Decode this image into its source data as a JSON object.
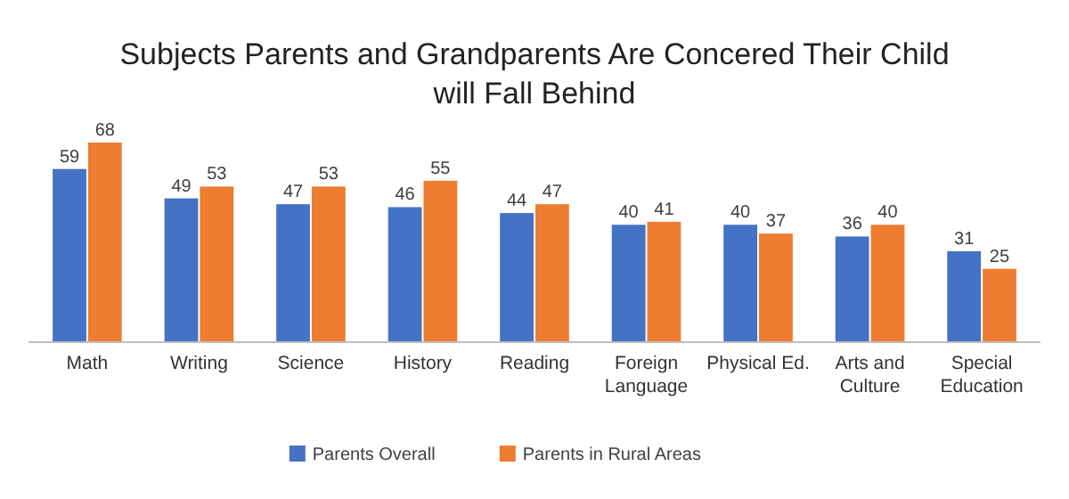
{
  "chart_data": {
    "type": "bar",
    "title": "Subjects Parents  and Grandparents Are Concered Their Child\nwill Fall Behind",
    "categories": [
      "Math",
      "Writing",
      "Science",
      "History",
      "Reading",
      "Foreign Language",
      "Physical Ed.",
      "Arts and Culture",
      "Special Education"
    ],
    "series": [
      {
        "name": "Parents Overall",
        "color": "#4472c4",
        "values": [
          59,
          49,
          47,
          46,
          44,
          40,
          40,
          36,
          31
        ]
      },
      {
        "name": "Parents in Rural Areas",
        "color": "#ed7d31",
        "values": [
          68,
          53,
          53,
          55,
          47,
          41,
          37,
          40,
          25
        ]
      }
    ],
    "data_labels": true,
    "legend": "bottom"
  }
}
